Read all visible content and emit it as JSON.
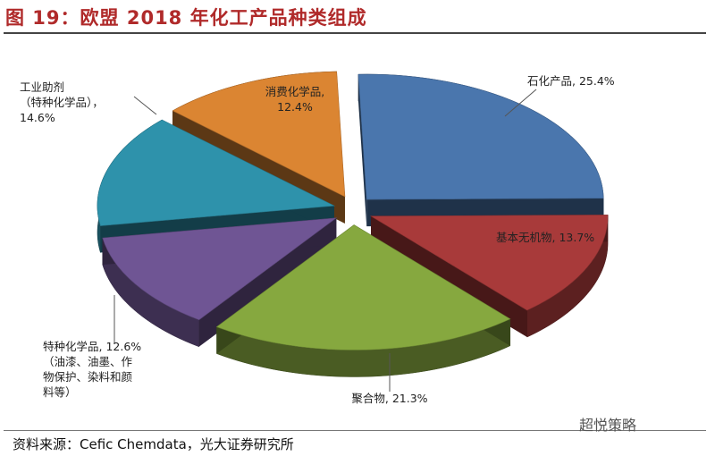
{
  "title": "图 19：欧盟 2018 年化工产品种类组成",
  "source": "资料来源：Cefic Chemdata，光大证券研究所",
  "watermark": "超悦策略",
  "chart_data": {
    "type": "pie",
    "style": "3d-exploded",
    "slices": [
      {
        "label": "石化产品",
        "value": 25.4,
        "display": "石化产品, 25.4%",
        "color": "#4a76ad"
      },
      {
        "label": "基本无机物",
        "value": 13.7,
        "display": "基本无机物, 13.7%",
        "color": "#a83a3a"
      },
      {
        "label": "聚合物",
        "value": 21.3,
        "display": "聚合物, 21.3%",
        "color": "#86a83f"
      },
      {
        "label": "特种化学品（油漆、油墨、作物保护、染料和颜料等）",
        "value": 12.6,
        "display_lines": [
          "特种化学品, 12.6%",
          "（油漆、油墨、作",
          "物保护、染料和颜",
          "料等）"
        ],
        "color": "#6f5594"
      },
      {
        "label": "工业助剂（特种化学品）",
        "value": 14.6,
        "display_lines": [
          "工业助剂",
          "（特种化学品），",
          "14.6%"
        ],
        "color": "#2e92ab"
      },
      {
        "label": "消费化学品",
        "value": 12.4,
        "display_lines": [
          "消费化学品,",
          "12.4%"
        ],
        "color": "#db8532"
      }
    ]
  }
}
